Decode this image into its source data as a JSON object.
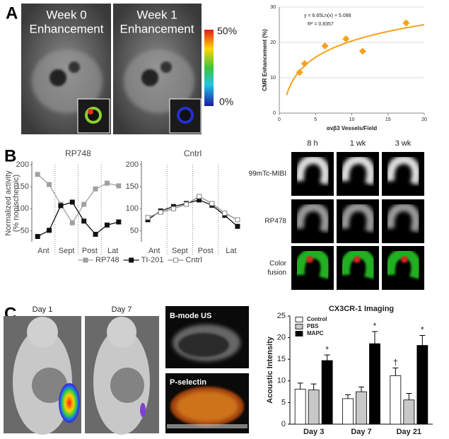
{
  "panel_labels": [
    "A",
    "B",
    "C"
  ],
  "mri": [
    [
      "Week 0",
      "Enhancement"
    ],
    [
      "Week 1",
      "Enhancement"
    ]
  ],
  "colorbar": {
    "max_label": "50%",
    "min_label": "0%"
  },
  "scintigraphy": {
    "columns": [
      "8 h",
      "1 wk",
      "3 wk"
    ],
    "rows": [
      [
        "99mTc-MIBI"
      ],
      [
        "RP478"
      ],
      [
        "Color",
        "fusion"
      ]
    ]
  },
  "mouse": [
    "Day 1",
    "Day 7"
  ],
  "ultrasound": [
    "B-mode US",
    "P-selectin"
  ],
  "chart_data": [
    {
      "type": "scatter",
      "x": [
        2.8,
        3.5,
        6.3,
        9.2,
        11.5,
        17.5
      ],
      "values": [
        11.5,
        14,
        19,
        21,
        17.5,
        25.5
      ],
      "color": "#f4a21c",
      "fit": "y = 6.65Ln(x) + 5.088",
      "r2": "R² = 0.8357",
      "xlabel": "αvβ3 Vessels/Field",
      "ylabel": "CMR Enhancement (%)",
      "xlim": [
        0,
        20
      ],
      "xticks": [
        0,
        5,
        10,
        15,
        20
      ],
      "ylim": [
        0,
        30
      ],
      "yticks": [
        0,
        10,
        20,
        30
      ],
      "grid": true
    },
    {
      "type": "line",
      "title": "RP748",
      "ylabel": [
        "Normalized activity",
        "(% nonischemic)"
      ],
      "groups": [
        "Ant",
        "Sept",
        "Post",
        "Lat"
      ],
      "series": [
        {
          "name": "RP748",
          "color": "#a0a0a0",
          "values": [
            178,
            155,
            110,
            68,
            110,
            145,
            158,
            152
          ]
        },
        {
          "name": "TI-201",
          "color": "#111111",
          "values": [
            37,
            51,
            107,
            115,
            72,
            42,
            63,
            70
          ]
        }
      ],
      "ylim": [
        25,
        200
      ],
      "yticks": [
        50,
        100,
        150,
        200
      ]
    },
    {
      "type": "line",
      "title": "Cntrl",
      "groups": [
        "Ant",
        "Sept",
        "Post",
        "Lat"
      ],
      "series": [
        {
          "name": "TI-201",
          "color": "#111111",
          "values": [
            75,
            95,
            105,
            112,
            120,
            108,
            85,
            60
          ]
        },
        {
          "name": "Cntrl",
          "color": "#888888",
          "hollow": true,
          "values": [
            80,
            92,
            100,
            110,
            128,
            112,
            90,
            75
          ]
        }
      ],
      "ylim": [
        25,
        200
      ],
      "yticks": [
        50,
        100,
        150,
        200
      ]
    },
    {
      "type": "bar",
      "title": "CX3CR-1 Imaging",
      "ylabel": "Acoustic Intensity",
      "categories": [
        "Day 3",
        "Day 7",
        "Day 21"
      ],
      "series": [
        {
          "name": "Control",
          "color": "#ffffff",
          "values": [
            8.1,
            5.9,
            11.2
          ],
          "errors": [
            1.4,
            0.9,
            1.8
          ],
          "markers": [
            null,
            null,
            "†"
          ]
        },
        {
          "name": "PBS",
          "color": "#c8c8c8",
          "values": [
            7.9,
            7.5,
            5.6
          ],
          "errors": [
            1.4,
            1.1,
            1.5
          ],
          "markers": [
            null,
            null,
            null
          ]
        },
        {
          "name": "MAPC",
          "color": "#000000",
          "values": [
            14.7,
            18.6,
            18.2
          ],
          "errors": [
            1.3,
            2.8,
            2.3
          ],
          "markers": [
            "*",
            "*",
            "*"
          ]
        }
      ],
      "ylim": [
        0,
        25
      ],
      "yticks": [
        0,
        5,
        10,
        15,
        20,
        25
      ]
    }
  ]
}
